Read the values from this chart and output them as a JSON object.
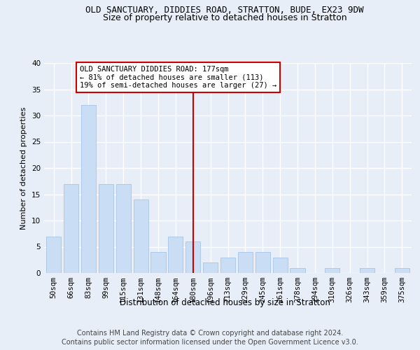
{
  "title": "OLD SANCTUARY, DIDDIES ROAD, STRATTON, BUDE, EX23 9DW",
  "subtitle": "Size of property relative to detached houses in Stratton",
  "xlabel": "Distribution of detached houses by size in Stratton",
  "ylabel": "Number of detached properties",
  "categories": [
    "50sqm",
    "66sqm",
    "83sqm",
    "99sqm",
    "115sqm",
    "131sqm",
    "148sqm",
    "164sqm",
    "180sqm",
    "196sqm",
    "213sqm",
    "229sqm",
    "245sqm",
    "261sqm",
    "278sqm",
    "294sqm",
    "310sqm",
    "326sqm",
    "343sqm",
    "359sqm",
    "375sqm"
  ],
  "values": [
    7,
    17,
    32,
    17,
    17,
    14,
    4,
    7,
    6,
    2,
    3,
    4,
    4,
    3,
    1,
    0,
    1,
    0,
    1,
    0,
    1
  ],
  "bar_color": "#c9ddf5",
  "bar_edge_color": "#a8c4e8",
  "vline_color": "#cc0000",
  "vline_index": 8,
  "annotation_text": "OLD SANCTUARY DIDDIES ROAD: 177sqm\n← 81% of detached houses are smaller (113)\n19% of semi-detached houses are larger (27) →",
  "annotation_box_facecolor": "#ffffff",
  "annotation_box_edgecolor": "#cc0000",
  "ylim_max": 40,
  "yticks": [
    0,
    5,
    10,
    15,
    20,
    25,
    30,
    35,
    40
  ],
  "footer_line1": "Contains HM Land Registry data © Crown copyright and database right 2024.",
  "footer_line2": "Contains public sector information licensed under the Open Government Licence v3.0.",
  "bg_color": "#e8eef8",
  "title_fontsize": 9,
  "subtitle_fontsize": 9,
  "xlabel_fontsize": 8.5,
  "ylabel_fontsize": 8,
  "tick_fontsize": 7.5,
  "annot_fontsize": 7.5,
  "footer_fontsize": 7
}
